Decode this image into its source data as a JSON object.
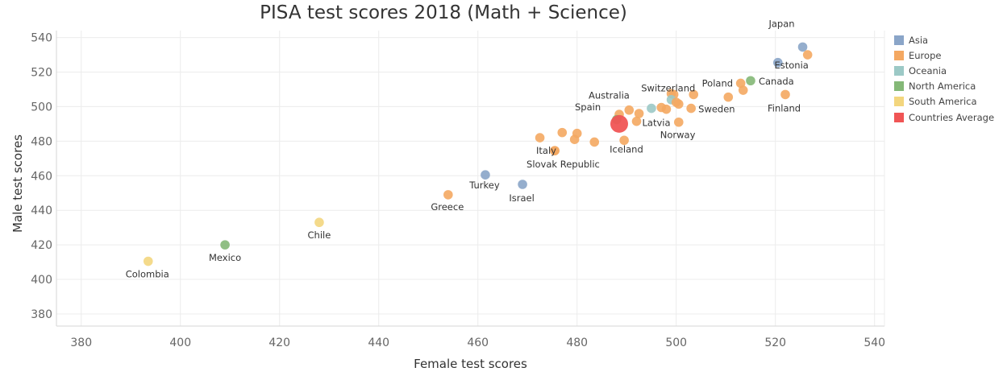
{
  "colors": {
    "Asia": "#8aa5c8",
    "Europe": "#f4a862",
    "Oceania": "#9cc9c6",
    "North America": "#84b877",
    "South America": "#f3d67e",
    "Countries Average": "#f05555"
  },
  "legend": {
    "items": [
      {
        "label": "Asia",
        "color": "#8aa5c8"
      },
      {
        "label": "Europe",
        "color": "#f4a862"
      },
      {
        "label": "Oceania",
        "color": "#9cc9c6"
      },
      {
        "label": "North America",
        "color": "#84b877"
      },
      {
        "label": "South America",
        "color": "#f3d67e"
      },
      {
        "label": "Countries Average",
        "color": "#f05555"
      }
    ]
  },
  "chart_data": {
    "type": "scatter",
    "title": "PISA test scores 2018 (Math + Science)",
    "xlabel": "Female test scores",
    "ylabel": "Male test scores",
    "xlim": [
      375,
      542
    ],
    "ylim": [
      373,
      544
    ],
    "xticks": [
      380,
      400,
      420,
      440,
      460,
      480,
      500,
      520,
      540
    ],
    "yticks": [
      380,
      400,
      420,
      440,
      460,
      480,
      500,
      520,
      540
    ],
    "grid": true,
    "legend_position": "right",
    "points": [
      {
        "label": "Japan",
        "x": 525.5,
        "y": 534.5,
        "group": "Asia"
      },
      {
        "label": "",
        "x": 520.5,
        "y": 525.5,
        "group": "Asia"
      },
      {
        "label": "Estonia",
        "x": 526.5,
        "y": 530.0,
        "group": "Europe"
      },
      {
        "label": "Canada",
        "x": 515.0,
        "y": 515.0,
        "group": "North America"
      },
      {
        "label": "Poland",
        "x": 513.0,
        "y": 513.5,
        "group": "Europe"
      },
      {
        "label": "",
        "x": 513.5,
        "y": 509.5,
        "group": "Europe"
      },
      {
        "label": "Finland",
        "x": 522.0,
        "y": 507.0,
        "group": "Europe"
      },
      {
        "label": "",
        "x": 510.5,
        "y": 505.5,
        "group": "Europe"
      },
      {
        "label": "Switzerland",
        "x": 503.5,
        "y": 507.0,
        "group": "Europe"
      },
      {
        "label": "",
        "x": 499.0,
        "y": 507.5,
        "group": "Europe"
      },
      {
        "label": "",
        "x": 499.5,
        "y": 507.0,
        "group": "Europe"
      },
      {
        "label": "",
        "x": 499.0,
        "y": 504.0,
        "group": "Oceania"
      },
      {
        "label": "",
        "x": 500.0,
        "y": 502.5,
        "group": "Europe"
      },
      {
        "label": "",
        "x": 500.5,
        "y": 501.5,
        "group": "Europe"
      },
      {
        "label": "Sweden",
        "x": 503.0,
        "y": 499.0,
        "group": "Europe"
      },
      {
        "label": "Australia",
        "x": 495.0,
        "y": 499.0,
        "group": "Oceania"
      },
      {
        "label": "",
        "x": 497.0,
        "y": 499.5,
        "group": "Europe"
      },
      {
        "label": "",
        "x": 498.0,
        "y": 498.5,
        "group": "Europe"
      },
      {
        "label": "",
        "x": 490.5,
        "y": 498.0,
        "group": "Europe"
      },
      {
        "label": "",
        "x": 492.5,
        "y": 496.0,
        "group": "Europe"
      },
      {
        "label": "",
        "x": 488.5,
        "y": 495.5,
        "group": "Europe"
      },
      {
        "label": "Latvia",
        "x": 492.0,
        "y": 491.5,
        "group": "Europe"
      },
      {
        "label": "Norway",
        "x": 500.5,
        "y": 491.0,
        "group": "Europe"
      },
      {
        "label": "",
        "x": 488.0,
        "y": 492.5,
        "group": "North America"
      },
      {
        "label": "Spain",
        "x": 488.5,
        "y": 490.0,
        "group": "Countries Average"
      },
      {
        "label": "",
        "x": 477.0,
        "y": 485.0,
        "group": "Europe"
      },
      {
        "label": "",
        "x": 480.0,
        "y": 484.5,
        "group": "Europe"
      },
      {
        "label": "",
        "x": 472.5,
        "y": 482.0,
        "group": "Europe"
      },
      {
        "label": "",
        "x": 479.5,
        "y": 481.0,
        "group": "Europe"
      },
      {
        "label": "Iceland",
        "x": 489.5,
        "y": 480.5,
        "group": "Europe"
      },
      {
        "label": "",
        "x": 483.5,
        "y": 479.5,
        "group": "Europe"
      },
      {
        "label": "Italy",
        "x": 475.5,
        "y": 474.5,
        "group": "Europe"
      },
      {
        "label": "Slovak Republic",
        "x": 475.5,
        "y": 474.5,
        "group": "Europe"
      },
      {
        "label": "Turkey",
        "x": 461.5,
        "y": 460.5,
        "group": "Asia"
      },
      {
        "label": "Israel",
        "x": 469.0,
        "y": 455.0,
        "group": "Asia"
      },
      {
        "label": "Greece",
        "x": 454.0,
        "y": 449.0,
        "group": "Europe"
      },
      {
        "label": "Chile",
        "x": 428.0,
        "y": 433.0,
        "group": "South America"
      },
      {
        "label": "Mexico",
        "x": 409.0,
        "y": 420.0,
        "group": "North America"
      },
      {
        "label": "Colombia",
        "x": 393.5,
        "y": 410.5,
        "group": "South America"
      }
    ]
  }
}
